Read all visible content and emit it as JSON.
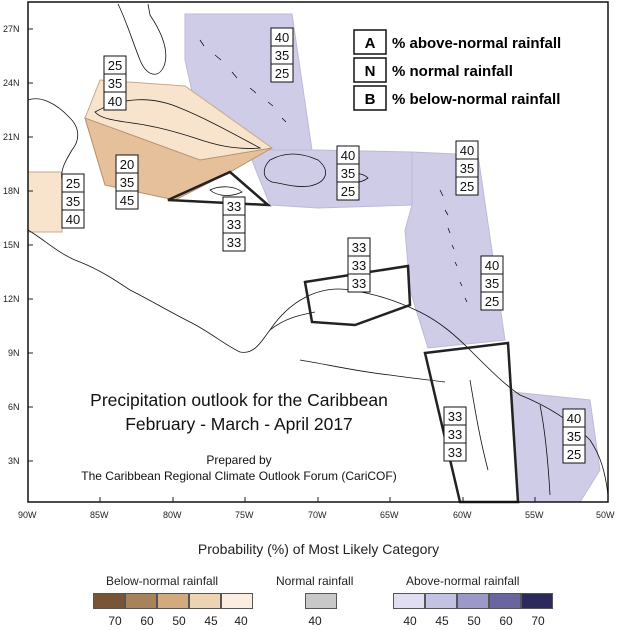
{
  "map": {
    "lat_labels": [
      "27N",
      "24N",
      "21N",
      "18N",
      "15N",
      "12N",
      "9N",
      "6N",
      "3N"
    ],
    "lon_labels": [
      "90W",
      "85W",
      "80W",
      "75W",
      "70W",
      "65W",
      "60W",
      "55W",
      "50W"
    ],
    "title_line1": "Precipitation outlook for the Caribbean",
    "title_line2": "February - March - April 2017",
    "prepared_line1": "Prepared by",
    "prepared_line2": "The Caribbean Regional Climate Outlook Forum (CariCOF)"
  },
  "key": {
    "items": [
      {
        "letter": "A",
        "text": "% above-normal rainfall"
      },
      {
        "letter": "N",
        "text": "% normal rainfall"
      },
      {
        "letter": "B",
        "text": "% below-normal rainfall"
      }
    ]
  },
  "regions": [
    {
      "name": "bahamas",
      "values": [
        "40",
        "35",
        "25"
      ]
    },
    {
      "name": "cuba",
      "values": [
        "25",
        "35",
        "40"
      ]
    },
    {
      "name": "belize",
      "values": [
        "25",
        "35",
        "40"
      ]
    },
    {
      "name": "cayman",
      "values": [
        "20",
        "35",
        "45"
      ]
    },
    {
      "name": "jamaica",
      "values": [
        "33",
        "33",
        "33"
      ]
    },
    {
      "name": "hispaniola-pr",
      "values": [
        "40",
        "35",
        "25"
      ]
    },
    {
      "name": "leeward-islands",
      "values": [
        "40",
        "35",
        "25"
      ]
    },
    {
      "name": "abc-islands",
      "values": [
        "33",
        "33",
        "33"
      ]
    },
    {
      "name": "windward-islands",
      "values": [
        "40",
        "35",
        "25"
      ]
    },
    {
      "name": "guyana",
      "values": [
        "33",
        "33",
        "33"
      ]
    },
    {
      "name": "suriname-fg",
      "values": [
        "40",
        "35",
        "25"
      ]
    }
  ],
  "legend": {
    "title": "Probability (%) of Most Likely Category",
    "below": {
      "label": "Below-normal rainfall",
      "values": [
        "70",
        "60",
        "50",
        "45",
        "40"
      ],
      "colors": [
        "#7a5535",
        "#a8825a",
        "#d2aa7f",
        "#ecd3b3",
        "#fbeee0"
      ]
    },
    "normal": {
      "label": "Normal rainfall",
      "values": [
        "40"
      ],
      "colors": [
        "#c8c8c8"
      ]
    },
    "above": {
      "label": "Above-normal rainfall",
      "values": [
        "40",
        "45",
        "50",
        "60",
        "70"
      ],
      "colors": [
        "#e0def0",
        "#c4c2e2",
        "#9c98c8",
        "#6a659f",
        "#2b2a5a"
      ]
    }
  }
}
